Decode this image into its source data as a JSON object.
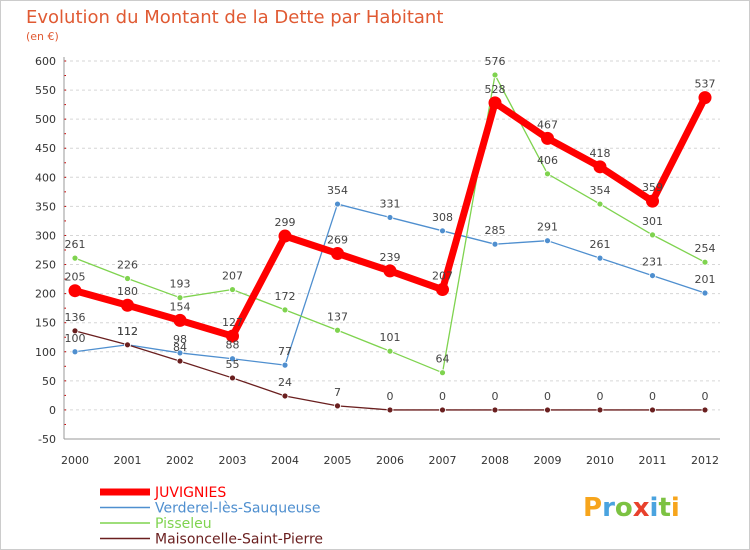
{
  "chart_data": {
    "type": "line",
    "title": "Evolution du Montant de la Dette par Habitant",
    "subtitle": "(en €)",
    "x": [
      "2000",
      "2001",
      "2002",
      "2003",
      "2004",
      "2005",
      "2006",
      "2007",
      "2008",
      "2009",
      "2010",
      "2011",
      "2012"
    ],
    "ylim": [
      -50,
      600
    ],
    "yticks": [
      "600",
      "550",
      "500",
      "450",
      "400",
      "350",
      "300",
      "250",
      "200",
      "150",
      "100",
      "50",
      "0",
      "-50"
    ],
    "grid": "horizontal-dashed",
    "legend_position": "bottom-left",
    "series": [
      {
        "name": "Verderel-lès-Sauqueuse",
        "color": "#4f8fcf",
        "values": [
          100,
          112,
          98,
          88,
          77,
          354,
          331,
          308,
          285,
          291,
          261,
          231,
          201
        ]
      },
      {
        "name": "Pisseleu",
        "color": "#7fd34f",
        "values": [
          261,
          226,
          193,
          207,
          172,
          137,
          101,
          64,
          576,
          406,
          354,
          301,
          254
        ]
      },
      {
        "name": "Maisoncelle-Saint-Pierre",
        "color": "#6a1f1f",
        "values": [
          136,
          112,
          84,
          55,
          24,
          7,
          0,
          0,
          0,
          0,
          0,
          0,
          0
        ]
      },
      {
        "name": "JUVIGNIES",
        "color": "#ff0000",
        "values": [
          205,
          180,
          154,
          127,
          299,
          269,
          239,
          207,
          528,
          467,
          418,
          359,
          537
        ]
      }
    ]
  },
  "logo": {
    "text": "Proxiti"
  }
}
